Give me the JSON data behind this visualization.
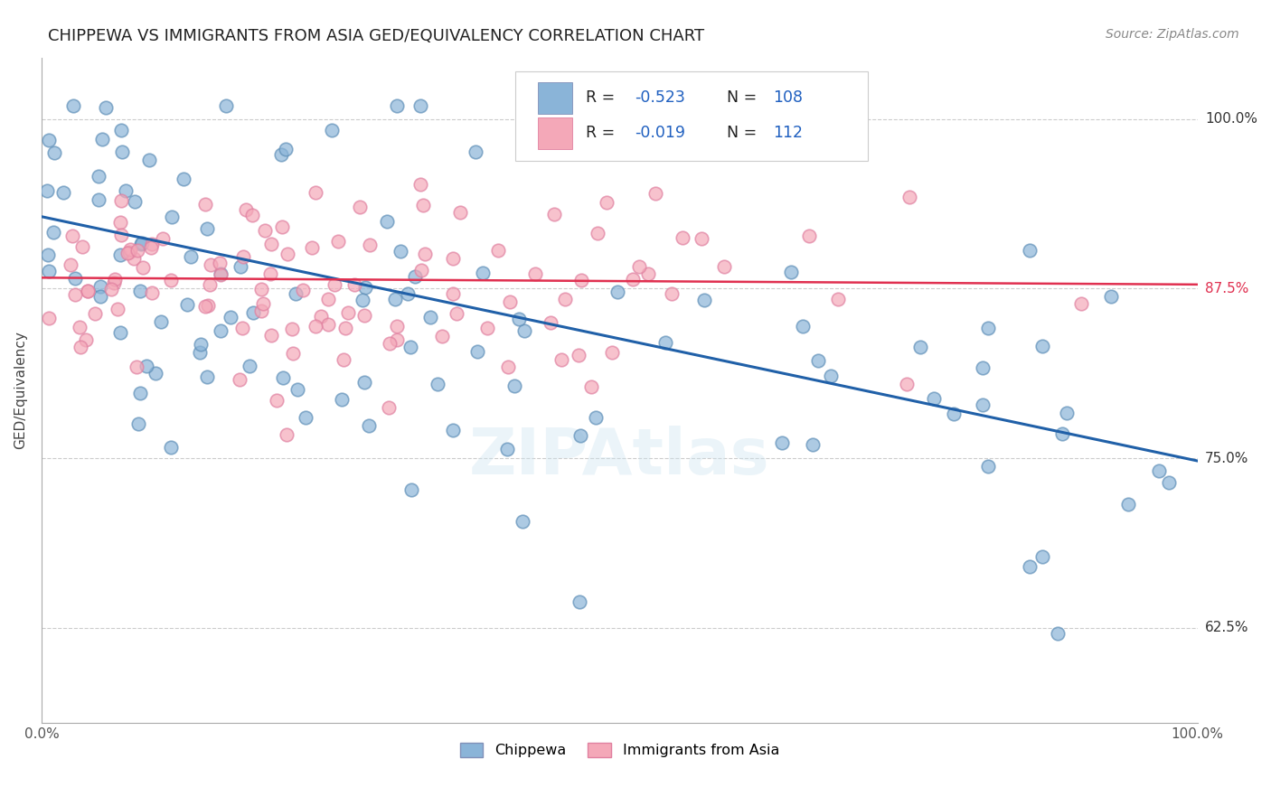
{
  "title": "CHIPPEWA VS IMMIGRANTS FROM ASIA GED/EQUIVALENCY CORRELATION CHART",
  "source": "Source: ZipAtlas.com",
  "ylabel": "GED/Equivalency",
  "xlim": [
    0.0,
    1.0
  ],
  "ylim": [
    0.555,
    1.045
  ],
  "yticks": [
    0.625,
    0.75,
    0.875,
    1.0
  ],
  "ytick_labels": [
    "62.5%",
    "75.0%",
    "87.5%",
    "100.0%"
  ],
  "xticks": [
    0.0,
    0.25,
    0.5,
    0.75,
    1.0
  ],
  "blue_color": "#8ab4d8",
  "pink_color": "#f4a8b8",
  "blue_line_color": "#2060a8",
  "pink_line_color": "#e03050",
  "watermark": "ZIPAtlas",
  "background_color": "#ffffff",
  "grid_color": "#cccccc",
  "title_fontsize": 13,
  "source_fontsize": 10,
  "blue_line_y0": 0.928,
  "blue_line_y1": 0.748,
  "pink_line_y0": 0.883,
  "pink_line_y1": 0.878
}
